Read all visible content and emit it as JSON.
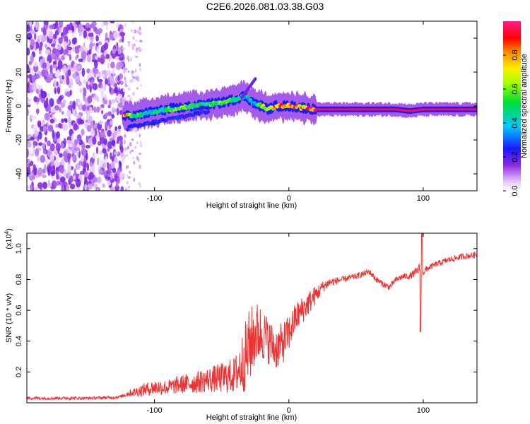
{
  "title": "C2E6.2026.081.03.38.G03",
  "chart_data": [
    {
      "type": "heatmap",
      "name": "spectrogram",
      "xlabel": "Height of straight line (km)",
      "ylabel": "Frequency (Hz)",
      "xlim": [
        -195,
        140
      ],
      "ylim": [
        -50,
        50
      ],
      "xticks": [
        -100,
        0,
        100
      ],
      "yticks": [
        -40,
        -20,
        0,
        20,
        40
      ],
      "tick_labels_x": [
        "-100",
        "0",
        "100"
      ],
      "tick_labels_y": [
        "-40",
        "-20",
        "0",
        "20",
        "40"
      ],
      "noise_region_x": [
        -195,
        -123
      ],
      "scatter_region_x": [
        -123,
        -110
      ],
      "signal_trace": [
        {
          "x": -123,
          "freq": -6,
          "amp": 0.95
        },
        {
          "x": -115,
          "freq": -6,
          "amp": 0.6
        },
        {
          "x": -105,
          "freq": -4,
          "amp": 0.45
        },
        {
          "x": -98,
          "freq": -3,
          "amp": 0.5
        },
        {
          "x": -90,
          "freq": -2,
          "amp": 0.55
        },
        {
          "x": -80,
          "freq": -1,
          "amp": 0.6
        },
        {
          "x": -70,
          "freq": 0,
          "amp": 0.5
        },
        {
          "x": -60,
          "freq": 1,
          "amp": 0.55
        },
        {
          "x": -50,
          "freq": 2,
          "amp": 0.6
        },
        {
          "x": -40,
          "freq": 4,
          "amp": 0.5
        },
        {
          "x": -33,
          "freq": 6,
          "amp": 0.45
        },
        {
          "x": -25,
          "freq": 1,
          "amp": 0.4
        },
        {
          "x": -20,
          "freq": 0,
          "amp": 0.75
        },
        {
          "x": -15,
          "freq": -2,
          "amp": 0.8
        },
        {
          "x": -10,
          "freq": 0,
          "amp": 0.85
        },
        {
          "x": -5,
          "freq": 0,
          "amp": 0.9
        },
        {
          "x": 0,
          "freq": 0,
          "amp": 0.85
        },
        {
          "x": 10,
          "freq": -1,
          "amp": 0.9
        },
        {
          "x": 20,
          "freq": -2,
          "amp": 0.95
        },
        {
          "x": 40,
          "freq": -2,
          "amp": 0.95
        },
        {
          "x": 60,
          "freq": -2,
          "amp": 0.95
        },
        {
          "x": 80,
          "freq": -2,
          "amp": 0.95
        },
        {
          "x": 90,
          "freq": -3,
          "amp": 0.95
        },
        {
          "x": 100,
          "freq": -2,
          "amp": 0.95
        },
        {
          "x": 120,
          "freq": -2,
          "amp": 0.95
        },
        {
          "x": 140,
          "freq": -2,
          "amp": 0.95
        }
      ],
      "spur": {
        "x": [
          -35,
          -25
        ],
        "freq": [
          5,
          16
        ]
      },
      "lower_branch": {
        "x": [
          -120,
          -60
        ],
        "freq": [
          -13,
          -3
        ]
      },
      "colorbar": {
        "label": "Normalized spectral amplitude",
        "range": [
          0,
          1
        ],
        "ticks": [
          0,
          0.2,
          0.4,
          0.6,
          0.8
        ],
        "tick_labels": [
          "0.0",
          "0.2",
          "0.4",
          "0.6",
          "0.8"
        ]
      }
    },
    {
      "type": "line",
      "name": "snr",
      "xlabel": "Height of straight line (km)",
      "ylabel": "SNR (10 * v/v)",
      "y_multiplier_base": "(x10",
      "y_multiplier_exp": "4",
      "y_multiplier_close": ")",
      "xlim": [
        -195,
        140
      ],
      "ylim": [
        0,
        1.1
      ],
      "xticks": [
        -100,
        0,
        100
      ],
      "yticks": [
        0.2,
        0.4,
        0.6,
        0.8,
        1.0
      ],
      "tick_labels_x": [
        "-100",
        "0",
        "100"
      ],
      "tick_labels_y": [
        "0.2",
        "0.4",
        "0.6",
        "0.8",
        "1.0"
      ],
      "color": "#ee3333",
      "series": [
        {
          "name": "SNR",
          "x": [
            -195,
            -170,
            -150,
            -130,
            -125,
            -120,
            -110,
            -100,
            -90,
            -80,
            -70,
            -60,
            -50,
            -40,
            -35,
            -30,
            -25,
            -20,
            -15,
            -10,
            -5,
            0,
            5,
            10,
            15,
            20,
            25,
            30,
            40,
            50,
            60,
            65,
            70,
            75,
            80,
            85,
            90,
            95,
            98,
            100,
            105,
            110,
            120,
            130,
            140
          ],
          "y": [
            0.03,
            0.03,
            0.03,
            0.035,
            0.04,
            0.06,
            0.08,
            0.1,
            0.1,
            0.12,
            0.13,
            0.15,
            0.16,
            0.18,
            0.25,
            0.35,
            0.45,
            0.45,
            0.4,
            0.35,
            0.38,
            0.45,
            0.55,
            0.6,
            0.65,
            0.7,
            0.75,
            0.78,
            0.8,
            0.82,
            0.85,
            0.8,
            0.77,
            0.75,
            0.8,
            0.82,
            0.82,
            0.85,
            0.88,
            0.85,
            0.88,
            0.9,
            0.93,
            0.95,
            0.96
          ],
          "noise": [
            0.01,
            0.01,
            0.01,
            0.01,
            0.01,
            0.02,
            0.04,
            0.05,
            0.05,
            0.06,
            0.07,
            0.08,
            0.1,
            0.12,
            0.2,
            0.25,
            0.22,
            0.18,
            0.15,
            0.14,
            0.14,
            0.12,
            0.1,
            0.09,
            0.08,
            0.06,
            0.04,
            0.03,
            0.02,
            0.02,
            0.02,
            0.02,
            0.02,
            0.02,
            0.02,
            0.02,
            0.02,
            0.03,
            0.04,
            0.03,
            0.02,
            0.02,
            0.02,
            0.02,
            0.02
          ],
          "dip": {
            "x": 98,
            "y": 0.46
          },
          "spike": {
            "x": 99,
            "y": 1.1
          }
        }
      ]
    }
  ]
}
